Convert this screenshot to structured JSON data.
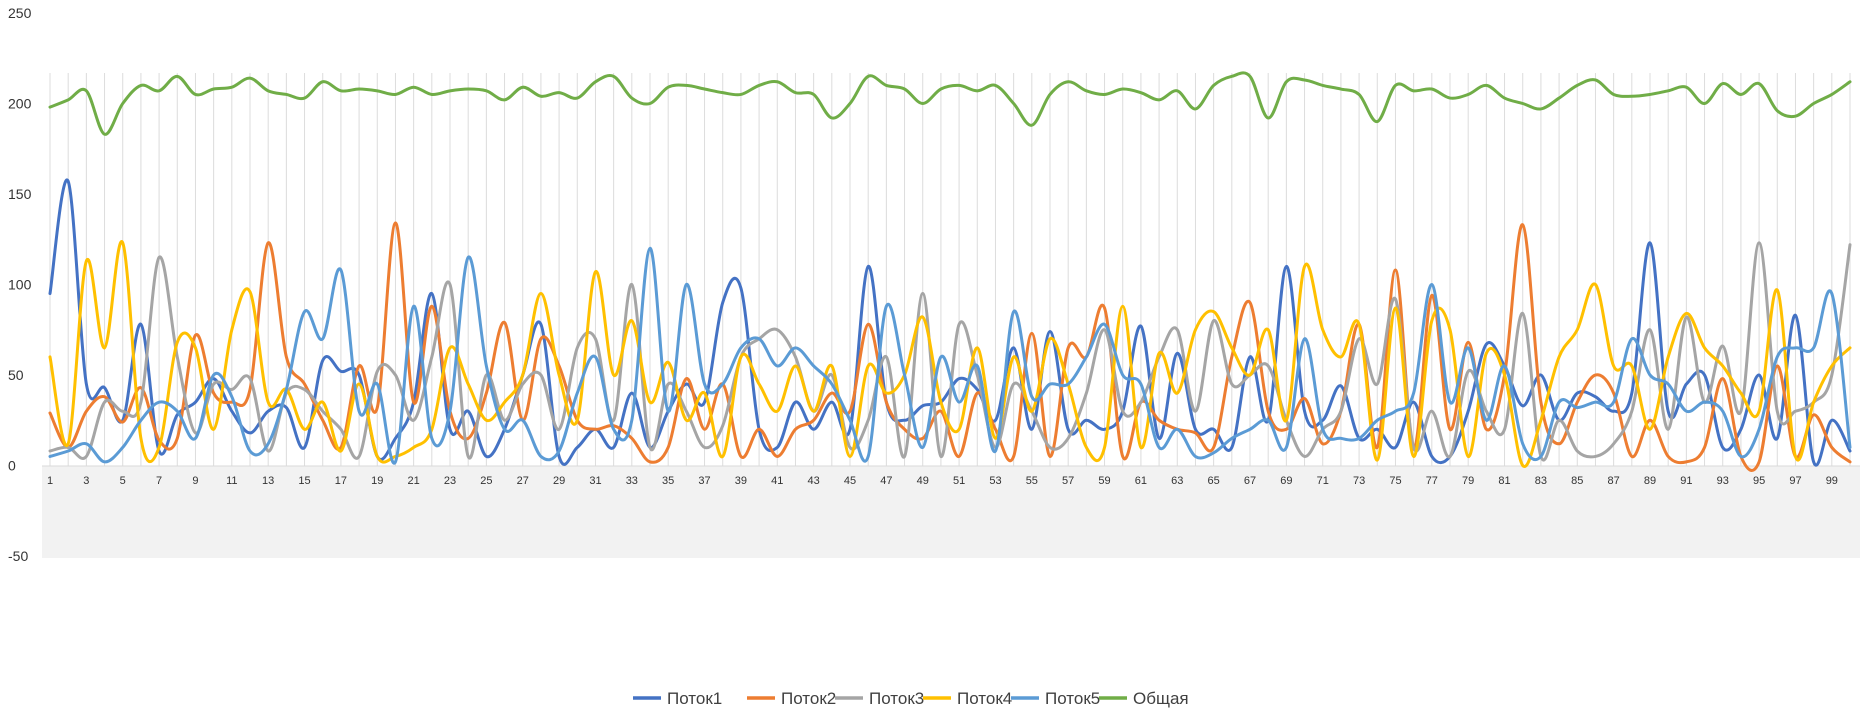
{
  "chart_data": {
    "type": "line",
    "smooth": true,
    "title": "",
    "xlabel": "",
    "ylabel": "",
    "ylim": [
      -50,
      250
    ],
    "yticks": [
      -50,
      0,
      50,
      100,
      150,
      200,
      250
    ],
    "x": [
      1,
      2,
      3,
      4,
      5,
      6,
      7,
      8,
      9,
      10,
      11,
      12,
      13,
      14,
      15,
      16,
      17,
      18,
      19,
      20,
      21,
      22,
      23,
      24,
      25,
      26,
      27,
      28,
      29,
      30,
      31,
      32,
      33,
      34,
      35,
      36,
      37,
      38,
      39,
      40,
      41,
      42,
      43,
      44,
      45,
      46,
      47,
      48,
      49,
      50,
      51,
      52,
      53,
      54,
      55,
      56,
      57,
      58,
      59,
      60,
      61,
      62,
      63,
      64,
      65,
      66,
      67,
      68,
      69,
      70,
      71,
      72,
      73,
      74,
      75,
      76,
      77,
      78,
      79,
      80,
      81,
      82,
      83,
      84,
      85,
      86,
      87,
      88,
      89,
      90,
      91,
      92,
      93,
      94,
      95,
      96,
      97,
      98,
      99,
      100
    ],
    "xtick_labels": [
      "1",
      "3",
      "5",
      "7",
      "9",
      "11",
      "13",
      "15",
      "17",
      "19",
      "21",
      "23",
      "25",
      "27",
      "29",
      "31",
      "33",
      "35",
      "37",
      "39",
      "41",
      "43",
      "45",
      "47",
      "49",
      "51",
      "53",
      "55",
      "57",
      "59",
      "61",
      "63",
      "65",
      "67",
      "69",
      "71",
      "73",
      "75",
      "77",
      "79",
      "81",
      "83",
      "85",
      "87",
      "89",
      "91",
      "93",
      "95",
      "97",
      "99"
    ],
    "grid": "vertical",
    "legend_position": "bottom",
    "series": [
      {
        "name": "Поток1",
        "color": "#4472C4",
        "values": [
          95,
          157,
          45,
          43,
          25,
          78,
          8,
          28,
          35,
          48,
          30,
          18,
          30,
          32,
          10,
          58,
          52,
          50,
          5,
          15,
          35,
          95,
          20,
          30,
          5,
          20,
          50,
          78,
          5,
          10,
          20,
          10,
          40,
          10,
          30,
          45,
          35,
          90,
          98,
          20,
          10,
          35,
          20,
          35,
          20,
          110,
          35,
          25,
          33,
          35,
          48,
          42,
          25,
          65,
          20,
          74,
          20,
          25,
          20,
          30,
          77,
          15,
          62,
          20,
          20,
          10,
          60,
          25,
          110,
          30,
          25,
          44,
          15,
          20,
          10,
          35,
          5,
          5,
          30,
          67,
          55,
          33,
          50,
          25,
          40,
          38,
          30,
          40,
          123,
          30,
          45,
          50,
          10,
          20,
          50,
          15,
          83,
          2,
          25,
          8
        ]
      },
      {
        "name": "Поток2",
        "color": "#ED7D31",
        "values": [
          29,
          10,
          30,
          38,
          24,
          43,
          14,
          15,
          72,
          40,
          35,
          42,
          123,
          60,
          45,
          25,
          10,
          55,
          32,
          134,
          35,
          88,
          30,
          15,
          40,
          79,
          25,
          70,
          55,
          25,
          20,
          22,
          15,
          2,
          10,
          48,
          20,
          45,
          5,
          20,
          5,
          20,
          25,
          40,
          30,
          78,
          35,
          20,
          15,
          30,
          5,
          40,
          20,
          5,
          73,
          5,
          65,
          60,
          87,
          5,
          35,
          25,
          20,
          18,
          10,
          60,
          90,
          30,
          20,
          37,
          12,
          30,
          78,
          10,
          108,
          9,
          94,
          20,
          68,
          20,
          50,
          133,
          35,
          12,
          35,
          50,
          40,
          5,
          25,
          5,
          2,
          10,
          48,
          5,
          2,
          55,
          5,
          28,
          10,
          2
        ]
      },
      {
        "name": "Поток3",
        "color": "#A5A5A5",
        "values": [
          8,
          10,
          5,
          35,
          30,
          35,
          115,
          60,
          18,
          45,
          42,
          48,
          8,
          40,
          42,
          30,
          20,
          5,
          52,
          50,
          25,
          60,
          100,
          5,
          50,
          25,
          45,
          50,
          20,
          65,
          70,
          25,
          100,
          10,
          45,
          30,
          10,
          22,
          60,
          70,
          75,
          60,
          30,
          50,
          10,
          25,
          60,
          5,
          95,
          5,
          78,
          50,
          10,
          45,
          30,
          10,
          15,
          40,
          75,
          30,
          35,
          60,
          75,
          30,
          80,
          45,
          50,
          55,
          25,
          5,
          20,
          30,
          70,
          45,
          92,
          10,
          30,
          5,
          52,
          30,
          20,
          84,
          5,
          25,
          8,
          5,
          12,
          30,
          75,
          20,
          82,
          35,
          66,
          30,
          123,
          30,
          30,
          35,
          50,
          122
        ]
      },
      {
        "name": "Поток4",
        "color": "#FFC000",
        "values": [
          60,
          12,
          113,
          65,
          123,
          15,
          10,
          68,
          65,
          20,
          75,
          96,
          35,
          42,
          20,
          35,
          8,
          45,
          5,
          5,
          10,
          20,
          65,
          45,
          25,
          35,
          50,
          95,
          50,
          25,
          107,
          50,
          80,
          35,
          57,
          25,
          40,
          5,
          60,
          45,
          30,
          55,
          30,
          55,
          5,
          55,
          40,
          50,
          82,
          35,
          20,
          65,
          15,
          60,
          30,
          70,
          45,
          10,
          10,
          88,
          10,
          62,
          40,
          75,
          85,
          65,
          50,
          75,
          25,
          110,
          75,
          60,
          78,
          3,
          87,
          5,
          80,
          75,
          5,
          62,
          50,
          0,
          25,
          60,
          75,
          100,
          55,
          55,
          20,
          60,
          84,
          65,
          55,
          40,
          30,
          97,
          5,
          35,
          55,
          65
        ]
      },
      {
        "name": "Поток5",
        "color": "#5B9BD5",
        "values": [
          5,
          8,
          12,
          2,
          10,
          25,
          35,
          30,
          15,
          50,
          38,
          8,
          12,
          42,
          85,
          70,
          108,
          30,
          45,
          2,
          88,
          15,
          30,
          115,
          55,
          20,
          25,
          5,
          8,
          40,
          60,
          20,
          25,
          120,
          30,
          100,
          45,
          45,
          65,
          70,
          55,
          65,
          55,
          45,
          25,
          5,
          88,
          50,
          10,
          60,
          35,
          55,
          8,
          85,
          38,
          45,
          45,
          60,
          78,
          50,
          45,
          10,
          20,
          5,
          7,
          15,
          20,
          25,
          10,
          70,
          20,
          15,
          15,
          25,
          30,
          40,
          100,
          35,
          65,
          25,
          55,
          12,
          5,
          35,
          32,
          35,
          35,
          70,
          50,
          45,
          30,
          35,
          30,
          5,
          20,
          60,
          65,
          65,
          95,
          10
        ]
      },
      {
        "name": "Общая",
        "color": "#70AD47",
        "values": [
          198,
          202,
          207,
          183,
          200,
          210,
          207,
          215,
          205,
          208,
          209,
          214,
          207,
          205,
          203,
          212,
          207,
          208,
          207,
          205,
          209,
          205,
          207,
          208,
          207,
          202,
          209,
          204,
          206,
          203,
          212,
          215,
          203,
          200,
          209,
          210,
          208,
          206,
          205,
          210,
          212,
          206,
          205,
          192,
          200,
          215,
          210,
          208,
          200,
          208,
          210,
          207,
          210,
          200,
          188,
          205,
          212,
          207,
          205,
          208,
          206,
          202,
          207,
          197,
          210,
          215,
          215,
          192,
          212,
          213,
          210,
          208,
          205,
          190,
          210,
          207,
          208,
          203,
          205,
          210,
          203,
          200,
          197,
          203,
          210,
          213,
          205,
          204,
          205,
          207,
          209,
          200,
          211,
          205,
          211,
          196,
          193,
          200,
          205,
          212
        ]
      }
    ]
  }
}
